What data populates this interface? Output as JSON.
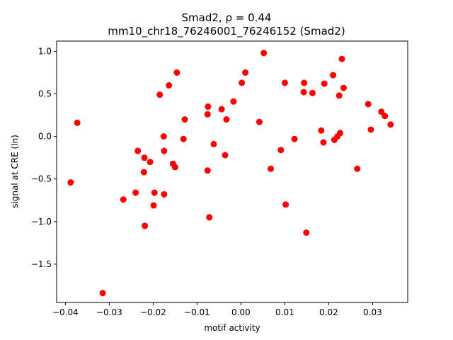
{
  "chart_data": {
    "type": "scatter",
    "title_line1": "Smad2, ρ = 0.44",
    "title_line2": "mm10_chr18_76246001_76246152 (Smad2)",
    "xlabel": "motif activity",
    "ylabel": "signal at CRE (ln)",
    "xlim": [
      -0.042,
      0.038
    ],
    "ylim": [
      -1.95,
      1.12
    ],
    "x_ticks": [
      -0.04,
      -0.03,
      -0.02,
      -0.01,
      0.0,
      0.01,
      0.02,
      0.03
    ],
    "x_tick_labels": [
      "−0.04",
      "−0.03",
      "−0.02",
      "−0.01",
      "0.00",
      "0.01",
      "0.02",
      "0.03"
    ],
    "y_ticks": [
      -1.5,
      -1.0,
      -0.5,
      0.0,
      0.5,
      1.0
    ],
    "y_tick_labels": [
      "−1.5",
      "−1.0",
      "−0.5",
      "0.0",
      "0.5",
      "1.0"
    ],
    "marker_color": "#ff0000",
    "points": [
      {
        "x": -0.0388,
        "y": -0.54
      },
      {
        "x": -0.0373,
        "y": 0.16
      },
      {
        "x": -0.0315,
        "y": -1.84
      },
      {
        "x": -0.0268,
        "y": -0.74
      },
      {
        "x": -0.024,
        "y": -0.66
      },
      {
        "x": -0.0235,
        "y": -0.17
      },
      {
        "x": -0.022,
        "y": -0.25
      },
      {
        "x": -0.0221,
        "y": -0.42
      },
      {
        "x": -0.0219,
        "y": -1.05
      },
      {
        "x": -0.0207,
        "y": -0.3
      },
      {
        "x": -0.0199,
        "y": -0.81
      },
      {
        "x": -0.0197,
        "y": -0.66
      },
      {
        "x": -0.0185,
        "y": 0.49
      },
      {
        "x": -0.0176,
        "y": 0.0
      },
      {
        "x": -0.0175,
        "y": -0.17
      },
      {
        "x": -0.0175,
        "y": -0.68
      },
      {
        "x": -0.0164,
        "y": 0.6
      },
      {
        "x": -0.0155,
        "y": -0.32
      },
      {
        "x": -0.015,
        "y": -0.36
      },
      {
        "x": -0.0146,
        "y": 0.75
      },
      {
        "x": -0.0131,
        "y": -0.03
      },
      {
        "x": -0.0128,
        "y": 0.2
      },
      {
        "x": -0.0075,
        "y": 0.35
      },
      {
        "x": -0.0076,
        "y": 0.26
      },
      {
        "x": -0.0076,
        "y": -0.4
      },
      {
        "x": -0.0072,
        "y": -0.95
      },
      {
        "x": -0.0062,
        "y": -0.09
      },
      {
        "x": -0.0044,
        "y": 0.32
      },
      {
        "x": -0.0036,
        "y": -0.22
      },
      {
        "x": -0.0033,
        "y": 0.2
      },
      {
        "x": -0.0017,
        "y": 0.41
      },
      {
        "x": 0.0002,
        "y": 0.63
      },
      {
        "x": 0.001,
        "y": 0.75
      },
      {
        "x": 0.0042,
        "y": 0.17
      },
      {
        "x": 0.0052,
        "y": 0.98
      },
      {
        "x": 0.0068,
        "y": -0.38
      },
      {
        "x": 0.0091,
        "y": -0.16
      },
      {
        "x": 0.01,
        "y": 0.63
      },
      {
        "x": 0.0102,
        "y": -0.8
      },
      {
        "x": 0.0122,
        "y": -0.03
      },
      {
        "x": 0.0143,
        "y": 0.52
      },
      {
        "x": 0.0144,
        "y": 0.63
      },
      {
        "x": 0.0149,
        "y": -1.13
      },
      {
        "x": 0.0163,
        "y": 0.51
      },
      {
        "x": 0.0183,
        "y": 0.07
      },
      {
        "x": 0.0188,
        "y": -0.07
      },
      {
        "x": 0.019,
        "y": 0.62
      },
      {
        "x": 0.021,
        "y": 0.72
      },
      {
        "x": 0.0213,
        "y": -0.04
      },
      {
        "x": 0.022,
        "y": 0.0
      },
      {
        "x": 0.0224,
        "y": 0.48
      },
      {
        "x": 0.0226,
        "y": 0.04
      },
      {
        "x": 0.023,
        "y": 0.91
      },
      {
        "x": 0.0234,
        "y": 0.57
      },
      {
        "x": 0.0265,
        "y": -0.38
      },
      {
        "x": 0.029,
        "y": 0.38
      },
      {
        "x": 0.0296,
        "y": 0.08
      },
      {
        "x": 0.032,
        "y": 0.29
      },
      {
        "x": 0.0328,
        "y": 0.24
      },
      {
        "x": 0.0341,
        "y": 0.14
      }
    ]
  }
}
